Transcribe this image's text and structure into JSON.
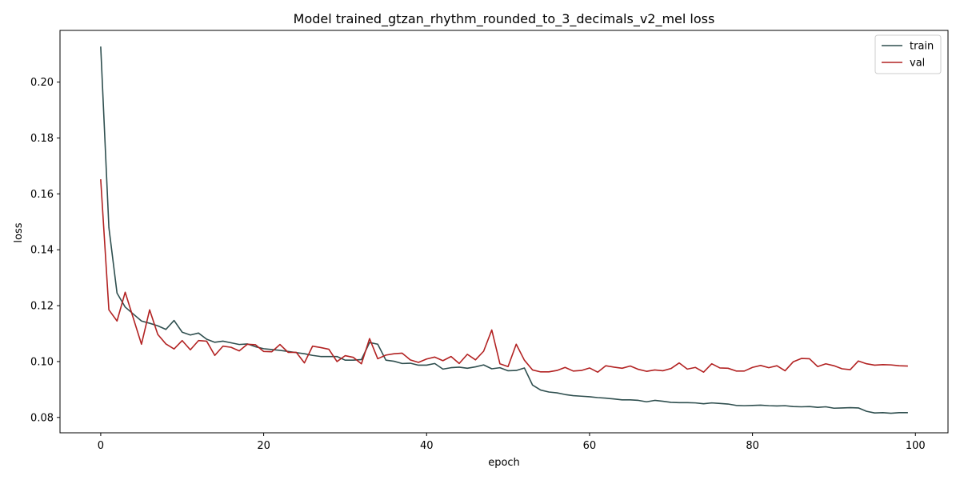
{
  "chart_data": {
    "type": "line",
    "title": "Model trained_gtzan_rhythm_rounded_to_3_decimals_v2_mel loss",
    "xlabel": "epoch",
    "ylabel": "loss",
    "xlim": [
      -5,
      104
    ],
    "ylim": [
      0.0745,
      0.2185
    ],
    "xticks": [
      0,
      20,
      40,
      60,
      80,
      100
    ],
    "yticks": [
      0.08,
      0.1,
      0.12,
      0.14,
      0.16,
      0.18,
      0.2
    ],
    "xtick_labels": [
      "0",
      "20",
      "40",
      "60",
      "80",
      "100"
    ],
    "ytick_labels": [
      "0.08",
      "0.10",
      "0.12",
      "0.14",
      "0.16",
      "0.18",
      "0.20"
    ],
    "grid": false,
    "legend": "top-right",
    "series": [
      {
        "name": "train",
        "color": "#2f4f4f",
        "values": [
          0.2125,
          0.148,
          0.1245,
          0.1195,
          0.117,
          0.1145,
          0.1137,
          0.1128,
          0.1115,
          0.1147,
          0.1105,
          0.1095,
          0.1102,
          0.108,
          0.1069,
          0.1073,
          0.1067,
          0.1061,
          0.1063,
          0.1053,
          0.1046,
          0.1043,
          0.104,
          0.1036,
          0.1032,
          0.1028,
          0.1022,
          0.1018,
          0.1018,
          0.1018,
          0.1005,
          0.1005,
          0.1007,
          0.1068,
          0.1062,
          0.1005,
          0.1001,
          0.0993,
          0.0994,
          0.0987,
          0.0987,
          0.0993,
          0.0973,
          0.0978,
          0.098,
          0.0976,
          0.0981,
          0.0988,
          0.0974,
          0.0978,
          0.0967,
          0.0968,
          0.0977,
          0.0916,
          0.0898,
          0.0891,
          0.0888,
          0.0882,
          0.0878,
          0.0876,
          0.0874,
          0.0871,
          0.0869,
          0.0866,
          0.0863,
          0.0863,
          0.0861,
          0.0856,
          0.0861,
          0.0858,
          0.0854,
          0.0853,
          0.0853,
          0.0852,
          0.0849,
          0.0852,
          0.085,
          0.0848,
          0.0843,
          0.0842,
          0.0843,
          0.0844,
          0.0842,
          0.0841,
          0.0842,
          0.0839,
          0.0838,
          0.0839,
          0.0836,
          0.0838,
          0.0833,
          0.0834,
          0.0835,
          0.0834,
          0.0822,
          0.0816,
          0.0817,
          0.0815,
          0.0817,
          0.0817
        ]
      },
      {
        "name": "val",
        "color": "#b22222",
        "values": [
          0.165,
          0.1185,
          0.1145,
          0.1248,
          0.1155,
          0.1062,
          0.1185,
          0.1097,
          0.1063,
          0.1045,
          0.1075,
          0.1042,
          0.1075,
          0.1073,
          0.1022,
          0.1055,
          0.1051,
          0.1038,
          0.1062,
          0.106,
          0.1036,
          0.1035,
          0.1061,
          0.1033,
          0.1033,
          0.0995,
          0.1055,
          0.105,
          0.1044,
          0.1,
          0.1021,
          0.1015,
          0.0992,
          0.1082,
          0.101,
          0.1023,
          0.1028,
          0.103,
          0.1006,
          0.0997,
          0.1009,
          0.1016,
          0.1003,
          0.1018,
          0.0993,
          0.1026,
          0.1006,
          0.1037,
          0.1113,
          0.0992,
          0.0982,
          0.1062,
          0.1005,
          0.097,
          0.0963,
          0.0963,
          0.0968,
          0.0979,
          0.0966,
          0.0968,
          0.0977,
          0.0962,
          0.0985,
          0.098,
          0.0976,
          0.0984,
          0.0972,
          0.0965,
          0.097,
          0.0967,
          0.0975,
          0.0995,
          0.0973,
          0.0979,
          0.0962,
          0.0992,
          0.0977,
          0.0976,
          0.0966,
          0.0966,
          0.0979,
          0.0986,
          0.0978,
          0.0985,
          0.0967,
          0.0999,
          0.1011,
          0.101,
          0.0982,
          0.0992,
          0.0985,
          0.0974,
          0.0971,
          0.1002,
          0.0992,
          0.0987,
          0.0989,
          0.0988,
          0.0985,
          0.0984
        ]
      }
    ]
  }
}
